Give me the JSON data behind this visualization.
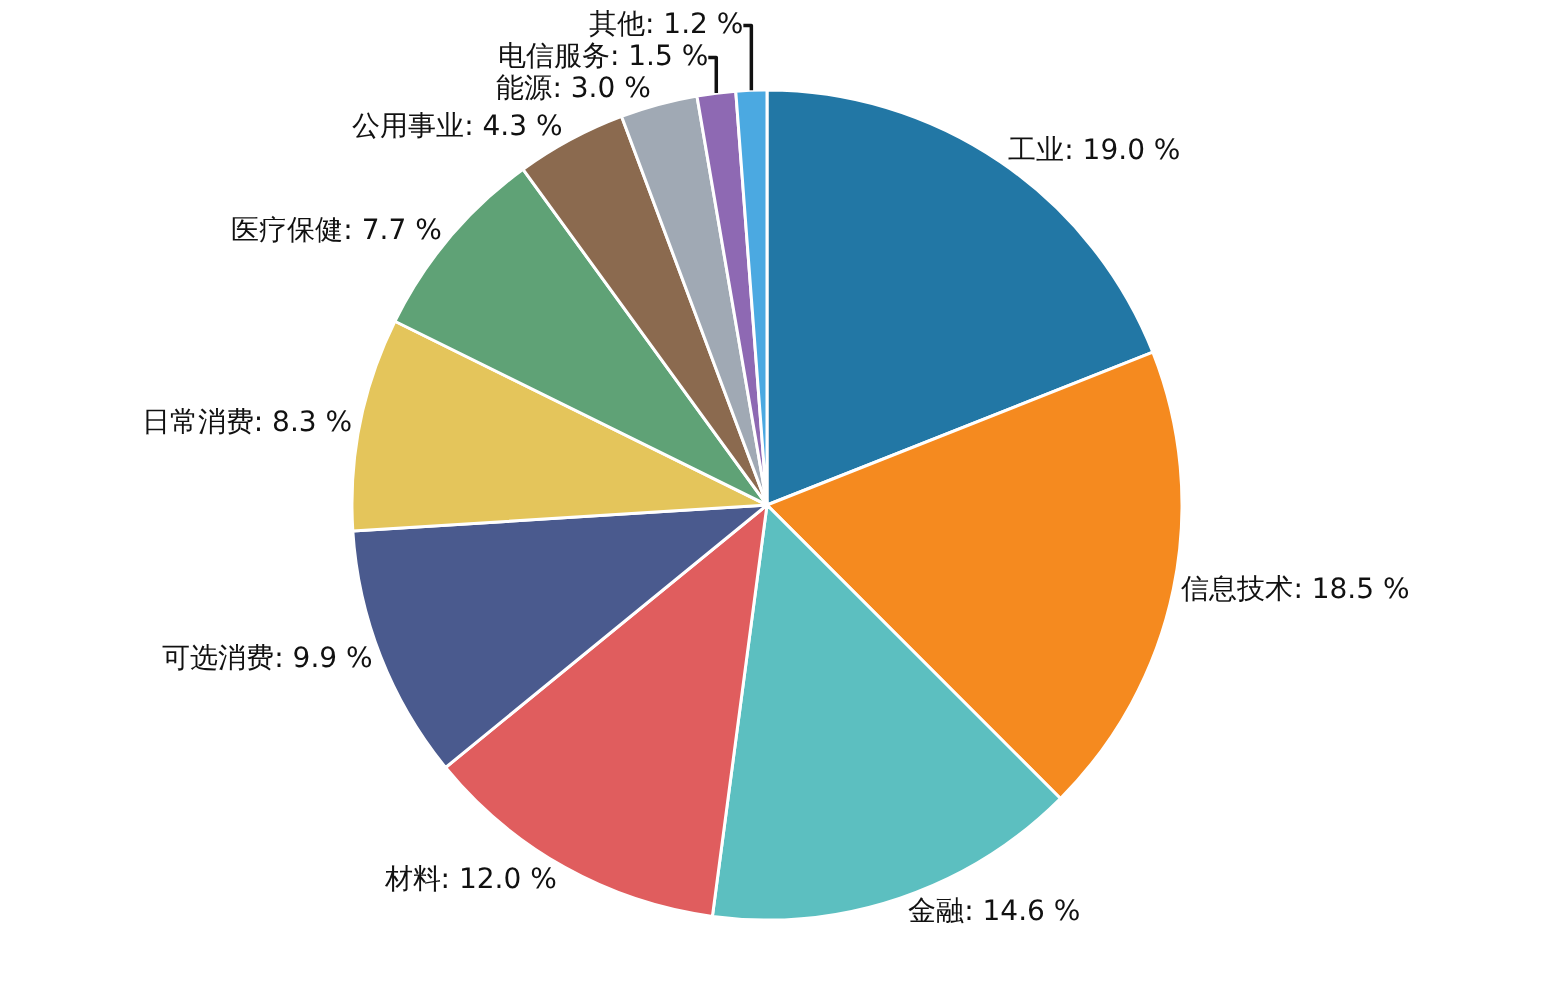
{
  "chart_data": {
    "type": "pie",
    "categories": [
      "工业",
      "信息技术",
      "金融",
      "材料",
      "可选消费",
      "日常消费",
      "医疗保健",
      "公用事业",
      "能源",
      "电信服务",
      "其他"
    ],
    "values": [
      19.0,
      18.5,
      14.6,
      12.0,
      9.9,
      8.3,
      7.7,
      4.3,
      3.0,
      1.5,
      1.2
    ],
    "value_labels": [
      "19.0 %",
      "18.5 %",
      "14.6 %",
      "12.0 %",
      "9.9 %",
      "8.3 %",
      "7.7 %",
      "4.3 %",
      "3.0 %",
      "1.5 %",
      "1.2 %"
    ],
    "colors": [
      "#2277a5",
      "#f58a1f",
      "#5cbfc0",
      "#e05d5e",
      "#4a5a8e",
      "#e4c55b",
      "#5fa276",
      "#8b6a4f",
      "#a0a9b4",
      "#8e69b3",
      "#4ba9e1"
    ],
    "legend": false
  }
}
